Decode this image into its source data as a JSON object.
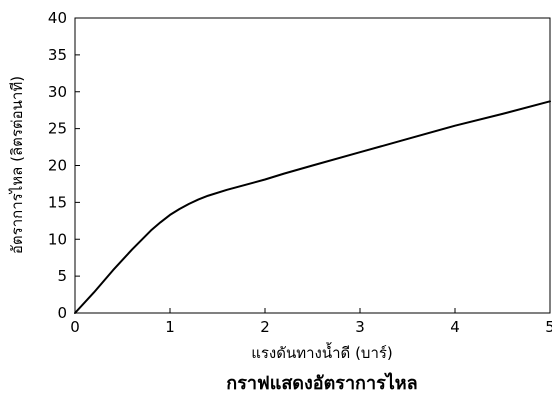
{
  "chart_data": {
    "type": "line",
    "title": "กราฟแสดงอัตราการไหล",
    "xlabel": "แรงดันทางน้ำดี (บาร์)",
    "ylabel": "อัตราการไหล (ลิตรต่อนาที)",
    "xlim": [
      0,
      5
    ],
    "ylim": [
      0,
      40
    ],
    "xticks": [
      "0",
      "1",
      "2",
      "3",
      "4",
      "5"
    ],
    "yticks": [
      "0",
      "5",
      "10",
      "15",
      "20",
      "25",
      "30",
      "35",
      "40"
    ],
    "grid": false,
    "legend": "none",
    "series": [
      {
        "color": "#000000",
        "x": [
          0,
          0.2,
          0.4,
          0.6,
          0.8,
          0.9,
          1.0,
          1.1,
          1.2,
          1.3,
          1.4,
          1.6,
          1.8,
          2.0,
          2.2,
          2.5,
          3.0,
          3.5,
          4.0,
          4.5,
          5.0
        ],
        "y": [
          0,
          2.8,
          5.8,
          8.6,
          11.2,
          12.3,
          13.3,
          14.1,
          14.8,
          15.4,
          15.9,
          16.7,
          17.4,
          18.1,
          18.9,
          20.0,
          21.8,
          23.6,
          25.4,
          27.0,
          28.7
        ]
      }
    ]
  }
}
